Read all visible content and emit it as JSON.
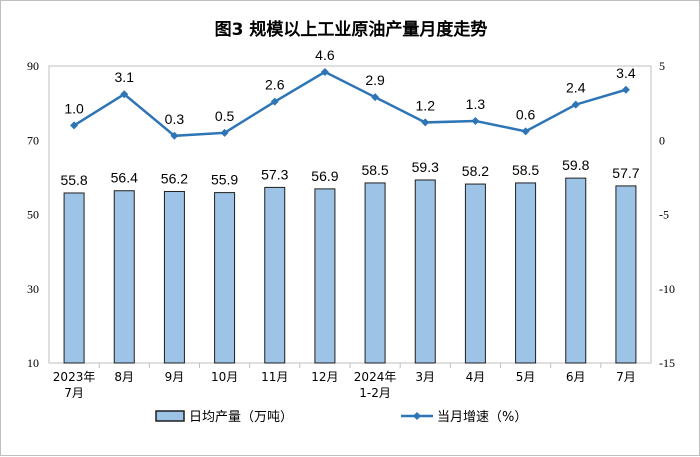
{
  "chart_data": {
    "type": "bar+line",
    "title": "图3  规模以上工业原油产量月度走势",
    "categories": [
      "2023年\n7月",
      "8月",
      "9月",
      "10月",
      "11月",
      "12月",
      "2024年\n1-2月",
      "3月",
      "4月",
      "5月",
      "6月",
      "7月"
    ],
    "series": [
      {
        "name": "日均产量（万吨）",
        "type": "bar",
        "axis": "left",
        "values": [
          55.8,
          56.4,
          56.2,
          55.9,
          57.3,
          56.9,
          58.5,
          59.3,
          58.2,
          58.5,
          59.8,
          57.7
        ]
      },
      {
        "name": "当月增速（%）",
        "type": "line",
        "axis": "right",
        "values": [
          1.0,
          3.1,
          0.3,
          0.5,
          2.6,
          4.6,
          2.9,
          1.2,
          1.3,
          0.6,
          2.4,
          3.4
        ]
      }
    ],
    "y_left": {
      "lim": [
        10,
        90
      ],
      "ticks": [
        10,
        30,
        50,
        70,
        90
      ]
    },
    "y_right": {
      "lim": [
        -15,
        5
      ],
      "ticks": [
        5,
        0,
        -5,
        -10,
        -15
      ]
    },
    "grid": false,
    "legend": "bottom",
    "colors": {
      "bar_fill": "#9dc3e6",
      "bar_stroke": "#1f1f1f",
      "line": "#2e75b6"
    }
  }
}
